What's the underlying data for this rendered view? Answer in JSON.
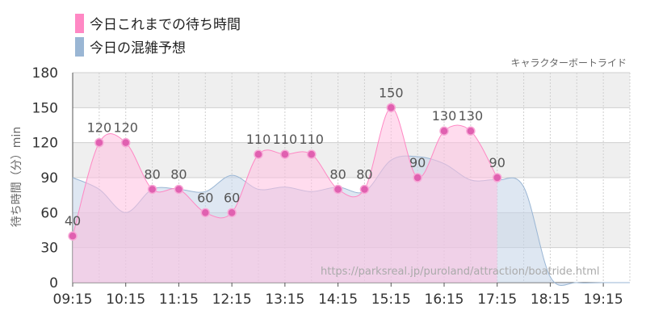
{
  "legend": {
    "wait": "今日これまでの待ち時間",
    "forecast": "今日の混雑予想"
  },
  "subtitle": "キャラクターボートライド",
  "watermark": "https://parksreal.jp/puroland/attraction/boatride.html",
  "colors": {
    "wait": "#ff88c4",
    "wait_fill": "#ffc0e0",
    "wait_marker": "#e060b0",
    "forecast": "#9ab6d4",
    "forecast_fill": "#c2d4e8",
    "band": "#efefef"
  },
  "chart_data": {
    "type": "area",
    "ylabel": "待ち時間（分）min",
    "ylim": [
      0,
      180
    ],
    "yticks": [
      0,
      30,
      60,
      90,
      120,
      150,
      180
    ],
    "xticks": [
      "09:15",
      "10:15",
      "11:15",
      "12:15",
      "13:15",
      "14:15",
      "15:15",
      "16:15",
      "17:15",
      "18:15",
      "19:15"
    ],
    "xlim": [
      "09:15",
      "19:45"
    ],
    "series": [
      {
        "name": "今日これまでの待ち時間",
        "x": [
          "09:15",
          "09:45",
          "10:15",
          "10:45",
          "11:15",
          "11:45",
          "12:15",
          "12:45",
          "13:15",
          "13:45",
          "14:15",
          "14:45",
          "15:15",
          "15:45",
          "16:15",
          "16:45",
          "17:15"
        ],
        "values": [
          40,
          120,
          120,
          80,
          80,
          60,
          60,
          110,
          110,
          110,
          80,
          80,
          150,
          90,
          130,
          130,
          90
        ]
      },
      {
        "name": "今日の混雑予想",
        "x": [
          "09:15",
          "09:45",
          "10:15",
          "10:45",
          "11:15",
          "11:45",
          "12:15",
          "12:45",
          "13:15",
          "13:45",
          "14:15",
          "14:45",
          "15:15",
          "15:45",
          "16:15",
          "16:45",
          "17:15",
          "17:45",
          "18:15",
          "18:45",
          "19:15",
          "19:45"
        ],
        "values": [
          90,
          80,
          60,
          80,
          80,
          78,
          92,
          80,
          82,
          78,
          82,
          78,
          105,
          108,
          102,
          88,
          88,
          82,
          5,
          0,
          0,
          0
        ]
      }
    ],
    "grid": true
  }
}
